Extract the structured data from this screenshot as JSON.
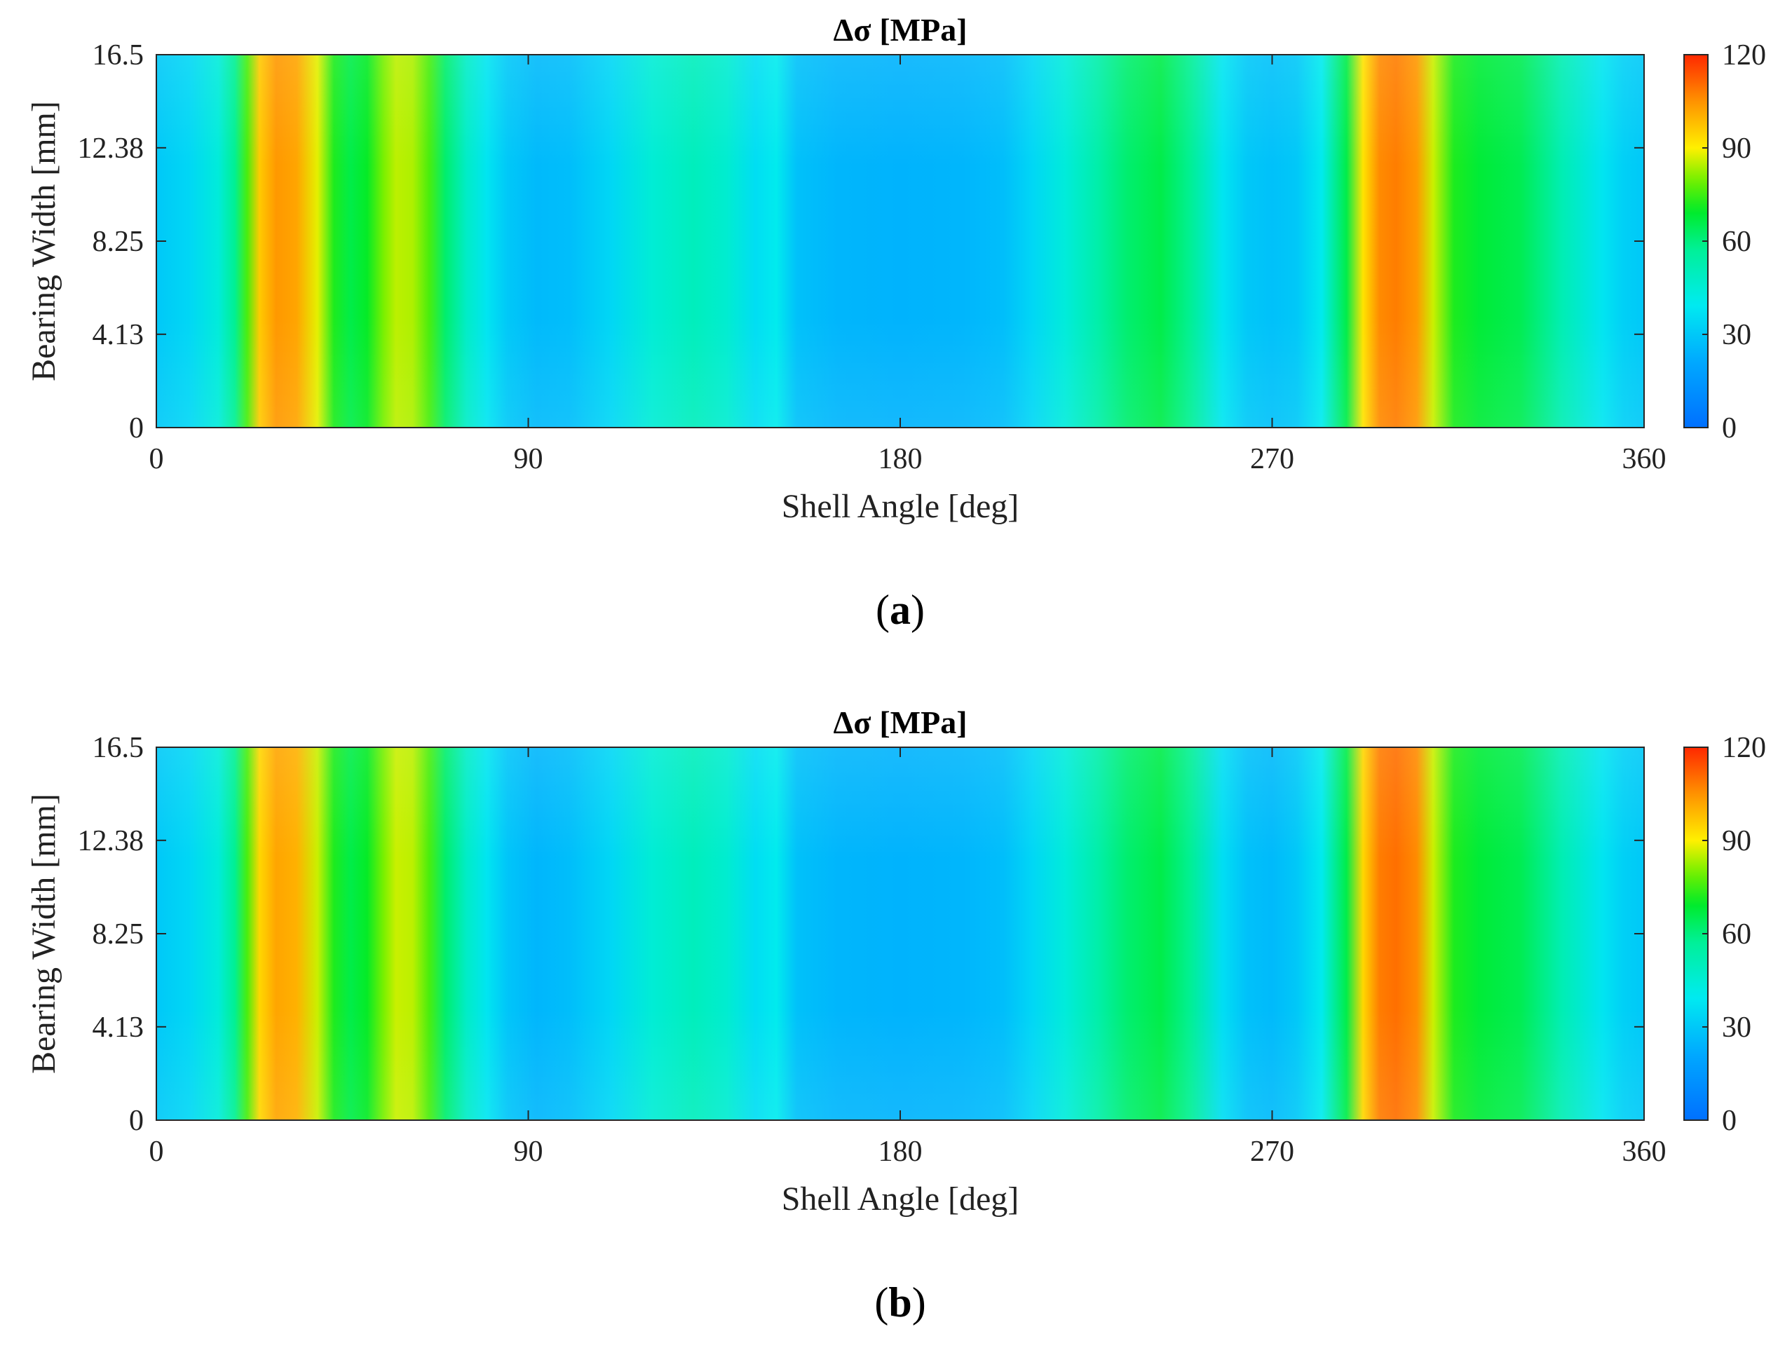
{
  "chart_data": [
    {
      "type": "heatmap",
      "panel_label": "(a)",
      "panel_letter": "a",
      "title": "Δσ [MPa]",
      "title_symbol": "Δσ",
      "title_unit": "[MPa]",
      "xlabel": "Shell Angle [deg]",
      "ylabel": "Bearing Width [mm]",
      "xlim": [
        0,
        360
      ],
      "ylim": [
        0,
        16.5
      ],
      "xticks": [
        0,
        90,
        180,
        270,
        360
      ],
      "xtick_labels": [
        "0",
        "90",
        "180",
        "270",
        "360"
      ],
      "yticks": [
        0,
        4.13,
        8.25,
        12.38,
        16.5
      ],
      "ytick_labels": [
        "0",
        "4.13",
        "8.25",
        "12.38",
        "16.5"
      ],
      "colorbar": {
        "range": [
          0,
          120
        ],
        "ticks": [
          0,
          30,
          60,
          90,
          120
        ],
        "tick_labels": [
          "0",
          "30",
          "60",
          "90",
          "120"
        ],
        "colormap": "jet"
      },
      "angle_profile": {
        "angles": [
          0,
          8,
          15,
          19,
          22,
          25,
          29,
          34,
          39,
          43,
          47,
          51,
          55,
          58,
          62,
          66,
          70,
          75,
          80,
          85,
          92,
          100,
          110,
          120,
          130,
          138,
          145,
          150,
          155,
          165,
          180,
          195,
          205,
          212,
          220,
          228,
          235,
          243,
          250,
          258,
          264,
          270,
          276,
          282,
          288,
          292,
          296,
          300,
          305,
          309,
          314,
          320,
          330,
          340,
          350,
          355,
          360
        ],
        "stress_mpa": [
          30,
          34,
          44,
          58,
          76,
          96,
          104,
          102,
          88,
          72,
          66,
          70,
          80,
          85,
          84,
          76,
          62,
          48,
          38,
          30,
          26,
          27,
          34,
          45,
          50,
          46,
          36,
          40,
          28,
          25,
          24,
          25,
          27,
          34,
          44,
          54,
          62,
          66,
          58,
          38,
          30,
          28,
          30,
          40,
          66,
          92,
          106,
          108,
          104,
          86,
          72,
          68,
          65,
          52,
          38,
          32,
          30
        ]
      }
    },
    {
      "type": "heatmap",
      "panel_label": "(b)",
      "panel_letter": "b",
      "title": "Δσ [MPa]",
      "title_symbol": "Δσ",
      "title_unit": "[MPa]",
      "xlabel": "Shell Angle [deg]",
      "ylabel": "Bearing Width [mm]",
      "xlim": [
        0,
        360
      ],
      "ylim": [
        0,
        16.5
      ],
      "xticks": [
        0,
        90,
        180,
        270,
        360
      ],
      "xtick_labels": [
        "0",
        "90",
        "180",
        "270",
        "360"
      ],
      "yticks": [
        0,
        4.13,
        8.25,
        12.38,
        16.5
      ],
      "ytick_labels": [
        "0",
        "4.13",
        "8.25",
        "12.38",
        "16.5"
      ],
      "colorbar": {
        "range": [
          0,
          120
        ],
        "ticks": [
          0,
          30,
          60,
          90,
          120
        ],
        "tick_labels": [
          "0",
          "30",
          "60",
          "90",
          "120"
        ],
        "colormap": "jet"
      },
      "angle_profile": {
        "angles": [
          0,
          8,
          15,
          19,
          22,
          25,
          29,
          34,
          39,
          43,
          47,
          51,
          55,
          58,
          62,
          66,
          70,
          75,
          80,
          85,
          92,
          100,
          110,
          120,
          130,
          138,
          145,
          150,
          155,
          165,
          180,
          195,
          205,
          212,
          220,
          228,
          235,
          243,
          250,
          258,
          264,
          270,
          276,
          282,
          288,
          292,
          296,
          300,
          305,
          309,
          314,
          320,
          330,
          340,
          350,
          355,
          360
        ],
        "stress_mpa": [
          30,
          34,
          44,
          58,
          76,
          94,
          102,
          100,
          86,
          72,
          66,
          70,
          80,
          86,
          85,
          76,
          62,
          48,
          38,
          29,
          25,
          27,
          34,
          45,
          50,
          46,
          36,
          40,
          28,
          25,
          24,
          25,
          27,
          34,
          44,
          54,
          62,
          66,
          58,
          36,
          28,
          26,
          30,
          40,
          66,
          94,
          108,
          110,
          106,
          86,
          72,
          68,
          65,
          52,
          38,
          32,
          30
        ]
      }
    }
  ]
}
